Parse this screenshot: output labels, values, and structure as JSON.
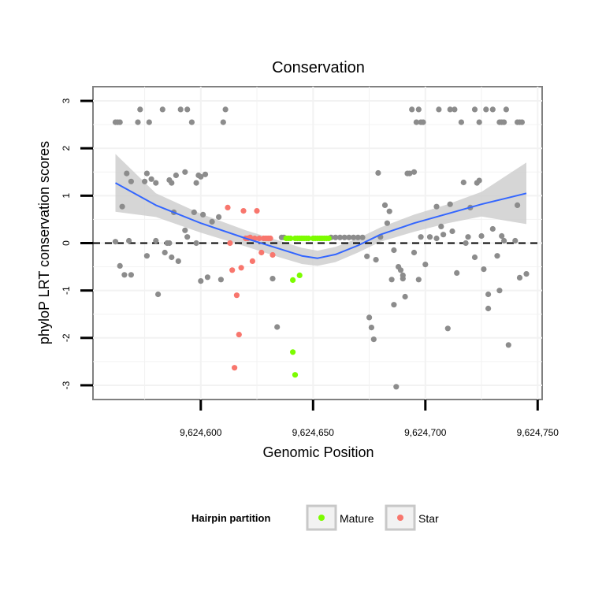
{
  "chart_data": {
    "type": "scatter",
    "title": "Conservation",
    "xlabel": "Genomic Position",
    "ylabel": "phyloP LRT conservation scores",
    "xlim": [
      9624552,
      9624752
    ],
    "ylim": [
      -3.3,
      3.3
    ],
    "x_ticks": [
      9624600,
      9624650,
      9624700,
      9624750
    ],
    "x_tick_labels": [
      "9,624,600",
      "9,624,650",
      "9,624,700",
      "9,624,750"
    ],
    "y_ticks": [
      3,
      2,
      1,
      0,
      -1,
      -2,
      -3
    ],
    "y_tick_labels": [
      "3",
      "2",
      "1",
      "0",
      "-1",
      "-2",
      "-3"
    ],
    "reference_line": {
      "y": 0,
      "style": "dashed"
    },
    "legend": {
      "title": "Hairpin partition",
      "entries": [
        {
          "label": "Mature",
          "color": "#7cfc00"
        },
        {
          "label": "Star",
          "color": "#f8766d"
        }
      ],
      "position": "bottom"
    },
    "colors": {
      "other": "#8c8c8c",
      "mature": "#7cfc00",
      "star": "#f8766d",
      "smooth": "#3366ff",
      "band": "#cccccc",
      "grid": "#f2f2f2",
      "zero_line": "#000000"
    },
    "smooth_line": {
      "x": [
        9624562,
        9624580,
        9624600,
        9624620,
        9624635,
        9624645,
        9624652,
        9624660,
        9624670,
        9624680,
        9624695,
        9624710,
        9624725,
        9624745
      ],
      "y": [
        1.27,
        0.8,
        0.42,
        0.1,
        -0.12,
        -0.27,
        -0.32,
        -0.24,
        -0.05,
        0.18,
        0.42,
        0.62,
        0.82,
        1.05
      ]
    },
    "confidence_band": {
      "x": [
        9624562,
        9624580,
        9624600,
        9624620,
        9624635,
        9624645,
        9624652,
        9624660,
        9624670,
        9624680,
        9624695,
        9624710,
        9624725,
        9624745
      ],
      "upper": [
        1.88,
        1.05,
        0.62,
        0.27,
        0.05,
        -0.1,
        -0.16,
        -0.08,
        0.1,
        0.33,
        0.6,
        0.82,
        1.08,
        1.7
      ],
      "lower": [
        0.66,
        0.55,
        0.22,
        -0.07,
        -0.3,
        -0.44,
        -0.48,
        -0.4,
        -0.2,
        0.03,
        0.24,
        0.42,
        0.56,
        0.4
      ]
    },
    "series": [
      {
        "name": "Other",
        "points": [
          [
            9624562,
            2.55
          ],
          [
            9624563,
            2.55
          ],
          [
            9624564,
            2.55
          ],
          [
            9624567,
            1.47
          ],
          [
            9624569,
            1.3
          ],
          [
            9624572,
            2.55
          ],
          [
            9624573,
            2.82
          ],
          [
            9624575,
            1.3
          ],
          [
            9624576,
            1.47
          ],
          [
            9624577,
            2.55
          ],
          [
            9624578,
            1.35
          ],
          [
            9624580,
            1.27
          ],
          [
            9624583,
            2.82
          ],
          [
            9624586,
            1.33
          ],
          [
            9624587,
            1.27
          ],
          [
            9624589,
            1.43
          ],
          [
            9624591,
            2.82
          ],
          [
            9624593,
            1.5
          ],
          [
            9624594,
            2.82
          ],
          [
            9624596,
            2.55
          ],
          [
            9624598,
            1.27
          ],
          [
            9624599,
            1.43
          ],
          [
            9624600,
            1.4
          ],
          [
            9624602,
            1.45
          ],
          [
            9624610,
            2.55
          ],
          [
            9624611,
            2.82
          ],
          [
            9624562,
            0.03
          ],
          [
            9624564,
            -0.48
          ],
          [
            9624565,
            0.77
          ],
          [
            9624566,
            -0.67
          ],
          [
            9624568,
            0.05
          ],
          [
            9624569,
            -0.67
          ],
          [
            9624576,
            -0.27
          ],
          [
            9624580,
            0.05
          ],
          [
            9624581,
            -1.08
          ],
          [
            9624584,
            -0.2
          ],
          [
            9624585,
            0.0
          ],
          [
            9624586,
            0.0
          ],
          [
            9624587,
            -0.3
          ],
          [
            9624588,
            0.65
          ],
          [
            9624590,
            -0.38
          ],
          [
            9624593,
            0.27
          ],
          [
            9624594,
            0.13
          ],
          [
            9624597,
            0.65
          ],
          [
            9624598,
            0.0
          ],
          [
            9624600,
            -0.8
          ],
          [
            9624601,
            0.6
          ],
          [
            9624603,
            -0.72
          ],
          [
            9624605,
            0.45
          ],
          [
            9624608,
            0.55
          ],
          [
            9624609,
            -0.77
          ],
          [
            9624632,
            -0.75
          ],
          [
            9624634,
            -1.77
          ],
          [
            9624636,
            0.12
          ],
          [
            9624637,
            0.12
          ],
          [
            9624658,
            0.12
          ],
          [
            9624660,
            0.12
          ],
          [
            9624662,
            0.12
          ],
          [
            9624664,
            0.12
          ],
          [
            9624666,
            0.12
          ],
          [
            9624668,
            0.12
          ],
          [
            9624670,
            0.12
          ],
          [
            9624672,
            0.12
          ],
          [
            9624674,
            -0.28
          ],
          [
            9624675,
            -1.57
          ],
          [
            9624676,
            -1.78
          ],
          [
            9624677,
            -2.03
          ],
          [
            9624678,
            -0.35
          ],
          [
            9624679,
            1.48
          ],
          [
            9624680,
            0.13
          ],
          [
            9624682,
            0.8
          ],
          [
            9624683,
            0.42
          ],
          [
            9624684,
            0.67
          ],
          [
            9624685,
            -0.77
          ],
          [
            9624686,
            -1.3
          ],
          [
            9624686,
            -0.15
          ],
          [
            9624688,
            -0.5
          ],
          [
            9624689,
            -0.57
          ],
          [
            9624690,
            -0.75
          ],
          [
            9624690,
            -0.68
          ],
          [
            9624691,
            -1.13
          ],
          [
            9624692,
            1.47
          ],
          [
            9624693,
            1.47
          ],
          [
            9624695,
            1.5
          ],
          [
            9624687,
            -3.03
          ],
          [
            9624694,
            2.82
          ],
          [
            9624696,
            2.55
          ],
          [
            9624697,
            2.82
          ],
          [
            9624698,
            2.55
          ],
          [
            9624699,
            2.55
          ],
          [
            9624706,
            2.82
          ],
          [
            9624711,
            2.82
          ],
          [
            9624713,
            2.82
          ],
          [
            9624716,
            2.55
          ],
          [
            9624722,
            2.82
          ],
          [
            9624724,
            2.55
          ],
          [
            9624727,
            2.82
          ],
          [
            9624730,
            2.82
          ],
          [
            9624733,
            2.55
          ],
          [
            9624734,
            2.55
          ],
          [
            9624735,
            2.55
          ],
          [
            9624736,
            2.82
          ],
          [
            9624741,
            2.55
          ],
          [
            9624742,
            2.55
          ],
          [
            9624743,
            2.55
          ],
          [
            9624695,
            -0.2
          ],
          [
            9624697,
            -0.77
          ],
          [
            9624698,
            0.13
          ],
          [
            9624700,
            -0.45
          ],
          [
            9624702,
            0.13
          ],
          [
            9624705,
            0.77
          ],
          [
            9624705,
            0.1
          ],
          [
            9624707,
            0.35
          ],
          [
            9624708,
            0.18
          ],
          [
            9624710,
            -1.8
          ],
          [
            9624711,
            0.82
          ],
          [
            9624712,
            0.25
          ],
          [
            9624714,
            -0.63
          ],
          [
            9624717,
            1.28
          ],
          [
            9624718,
            0.0
          ],
          [
            9624719,
            0.13
          ],
          [
            9624720,
            0.75
          ],
          [
            9624722,
            -0.3
          ],
          [
            9624723,
            1.27
          ],
          [
            9624724,
            1.32
          ],
          [
            9624725,
            0.15
          ],
          [
            9624726,
            -0.55
          ],
          [
            9624728,
            -1.38
          ],
          [
            9624728,
            -1.08
          ],
          [
            9624730,
            0.3
          ],
          [
            9624732,
            -0.27
          ],
          [
            9624733,
            -1.0
          ],
          [
            9624734,
            0.15
          ],
          [
            9624735,
            0.05
          ],
          [
            9624737,
            -2.15
          ],
          [
            9624740,
            0.05
          ],
          [
            9624741,
            0.8
          ],
          [
            9624742,
            -0.73
          ],
          [
            9624745,
            -0.65
          ]
        ]
      },
      {
        "name": "Mature",
        "points": [
          [
            9624638,
            0.1
          ],
          [
            9624639,
            0.1
          ],
          [
            9624640,
            0.1
          ],
          [
            9624642,
            0.1
          ],
          [
            9624643,
            0.1
          ],
          [
            9624644,
            0.1
          ],
          [
            9624645,
            0.1
          ],
          [
            9624646,
            0.1
          ],
          [
            9624647,
            0.1
          ],
          [
            9624648,
            0.1
          ],
          [
            9624650,
            0.1
          ],
          [
            9624651,
            0.1
          ],
          [
            9624652,
            0.1
          ],
          [
            9624653,
            0.1
          ],
          [
            9624654,
            0.1
          ],
          [
            9624655,
            0.1
          ],
          [
            9624656,
            0.1
          ],
          [
            9624657,
            0.1
          ],
          [
            9624641,
            -0.78
          ],
          [
            9624644,
            -0.68
          ],
          [
            9624641,
            -2.3
          ],
          [
            9624642,
            -2.78
          ]
        ]
      },
      {
        "name": "Star",
        "points": [
          [
            9624612,
            0.75
          ],
          [
            9624613,
            0.0
          ],
          [
            9624614,
            -0.57
          ],
          [
            9624616,
            -1.1
          ],
          [
            9624617,
            -1.93
          ],
          [
            9624615,
            -2.63
          ],
          [
            9624618,
            -0.52
          ],
          [
            9624619,
            0.68
          ],
          [
            9624620,
            0.1
          ],
          [
            9624621,
            0.1
          ],
          [
            9624622,
            0.12
          ],
          [
            9624623,
            -0.38
          ],
          [
            9624624,
            0.1
          ],
          [
            9624625,
            0.68
          ],
          [
            9624626,
            0.1
          ],
          [
            9624627,
            -0.2
          ],
          [
            9624628,
            0.1
          ],
          [
            9624629,
            0.1
          ],
          [
            9624630,
            0.1
          ],
          [
            9624631,
            0.1
          ],
          [
            9624632,
            -0.25
          ]
        ]
      }
    ]
  }
}
